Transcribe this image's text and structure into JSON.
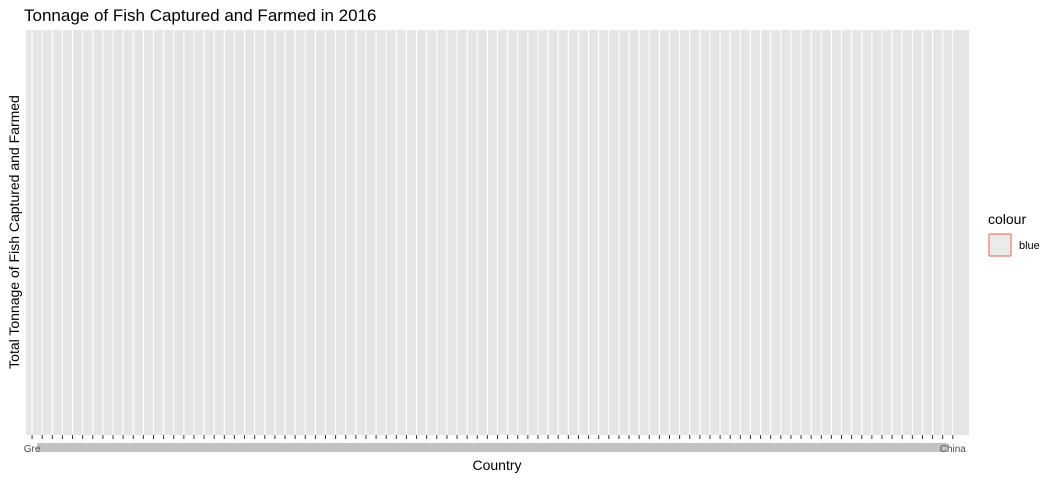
{
  "chart_data": {
    "type": "bar",
    "title": "Tonnage of Fish Captured and Farmed in 2016",
    "xlabel": "Country",
    "ylabel": "Total Tonnage of Fish Captured and Farmed",
    "category_count": 92,
    "tick_labels_legible": false,
    "first_tick_label_partial": "Gre",
    "last_tick_label_partial": "China",
    "values_shown": false,
    "grid": true,
    "panel_color": "#E5E5E5",
    "legend": {
      "title": "colour",
      "position": "right",
      "items": [
        {
          "label": "blue",
          "outline_color": "#F8766D",
          "fill_color": "#EBEBEB"
        }
      ]
    }
  }
}
